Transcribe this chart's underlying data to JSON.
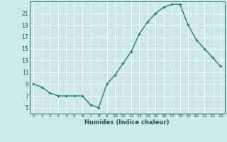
{
  "x": [
    0,
    1,
    2,
    3,
    4,
    5,
    6,
    7,
    8,
    9,
    10,
    11,
    12,
    13,
    14,
    15,
    16,
    17,
    18,
    19,
    20,
    21,
    22,
    23
  ],
  "y": [
    9,
    8.5,
    7.5,
    7,
    7,
    7,
    7,
    5.5,
    5,
    9,
    10.5,
    12.5,
    14.5,
    17.5,
    19.5,
    21,
    22,
    22.5,
    22.5,
    19,
    16.5,
    15,
    13.5,
    12
  ],
  "xlabel": "Humidex (Indice chaleur)",
  "ylim": [
    4,
    23
  ],
  "xlim": [
    -0.5,
    23.5
  ],
  "yticks": [
    5,
    7,
    9,
    11,
    13,
    15,
    17,
    19,
    21
  ],
  "xticks": [
    0,
    1,
    2,
    3,
    4,
    5,
    6,
    7,
    8,
    9,
    10,
    11,
    12,
    13,
    14,
    15,
    16,
    17,
    18,
    19,
    20,
    21,
    22,
    23
  ],
  "line_color": "#2d7d6e",
  "marker": "+",
  "markersize": 3.5,
  "linewidth": 1.0,
  "bg_color": "#cce8e8",
  "grid_color": "#ffffff",
  "tick_color": "#1a5555",
  "xlabel_color": "#1a5555",
  "spine_color": "#1a5555"
}
